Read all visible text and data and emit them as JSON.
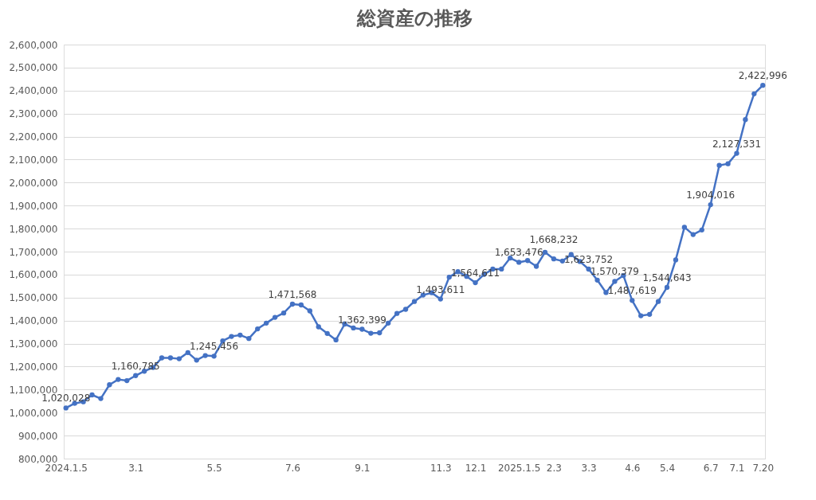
{
  "chart_data": {
    "type": "line",
    "title": "総資産の推移",
    "categories": [
      "2024.1.5",
      null,
      null,
      null,
      null,
      null,
      null,
      null,
      "3.1",
      null,
      null,
      null,
      null,
      null,
      null,
      null,
      null,
      "5.5",
      null,
      null,
      null,
      null,
      null,
      null,
      null,
      null,
      "7.6",
      null,
      null,
      null,
      null,
      null,
      null,
      null,
      "9.1",
      null,
      null,
      null,
      null,
      null,
      null,
      null,
      null,
      "11.3",
      null,
      null,
      null,
      "12.1",
      null,
      null,
      null,
      null,
      "2025.1.5",
      null,
      null,
      null,
      "2.3",
      null,
      null,
      null,
      "3.3",
      null,
      null,
      null,
      null,
      "4.6",
      null,
      null,
      null,
      "5.4",
      null,
      null,
      null,
      null,
      "6.7",
      null,
      null,
      "7.1",
      null,
      null,
      "7.20"
    ],
    "series": [
      {
        "color": "#4472c4",
        "values": [
          1020028,
          1040000,
          1047000,
          1077000,
          1061000,
          1121000,
          1144000,
          1139000,
          1160785,
          1180000,
          1196000,
          1238000,
          1238000,
          1234000,
          1261000,
          1228000,
          1248000,
          1245456,
          1312000,
          1331000,
          1337000,
          1322000,
          1364000,
          1389000,
          1414000,
          1433000,
          1471568,
          1468000,
          1442000,
          1373000,
          1344000,
          1316000,
          1385000,
          1368000,
          1362399,
          1345000,
          1347000,
          1389000,
          1431000,
          1449000,
          1483000,
          1511000,
          1521000,
          1493611,
          1589000,
          1613000,
          1592000,
          1564611,
          1601000,
          1624000,
          1624000,
          1672000,
          1653476,
          1661000,
          1636000,
          1697000,
          1668232,
          1659000,
          1687000,
          1657000,
          1623752,
          1576000,
          1522000,
          1570379,
          1596000,
          1487619,
          1421000,
          1427000,
          1483000,
          1544643,
          1664000,
          1806000,
          1774000,
          1794000,
          1904016,
          2075000,
          2082000,
          2127331,
          2274000,
          2386000,
          2422996
        ],
        "value_labels": [
          "1,020,028",
          null,
          null,
          null,
          null,
          null,
          null,
          null,
          "1,160,785",
          null,
          null,
          null,
          null,
          null,
          null,
          null,
          null,
          "1,245,456",
          null,
          null,
          null,
          null,
          null,
          null,
          null,
          null,
          "1,471,568",
          null,
          null,
          null,
          null,
          null,
          null,
          null,
          "1,362,399",
          null,
          null,
          null,
          null,
          null,
          null,
          null,
          null,
          "1,493,611",
          null,
          null,
          null,
          "1,564,611",
          null,
          null,
          null,
          null,
          "1,653,476",
          null,
          null,
          null,
          "1,668,232",
          null,
          null,
          null,
          "1,623,752",
          null,
          null,
          "1,570,379",
          null,
          "1,487,619",
          null,
          null,
          null,
          "1,544,643",
          null,
          null,
          null,
          null,
          "1,904,016",
          null,
          null,
          "2,127,331",
          null,
          null,
          "2,422,996"
        ]
      }
    ],
    "ylim": [
      800000,
      2600000
    ],
    "yticks": [
      {
        "value": 800000,
        "label": "800,000"
      },
      {
        "value": 900000,
        "label": "900,000"
      },
      {
        "value": 1000000,
        "label": "1,000,000"
      },
      {
        "value": 1100000,
        "label": "1,100,000"
      },
      {
        "value": 1200000,
        "label": "1,200,000"
      },
      {
        "value": 1300000,
        "label": "1,300,000"
      },
      {
        "value": 1400000,
        "label": "1,400,000"
      },
      {
        "value": 1500000,
        "label": "1,500,000"
      },
      {
        "value": 1600000,
        "label": "1,600,000"
      },
      {
        "value": 1700000,
        "label": "1,700,000"
      },
      {
        "value": 1800000,
        "label": "1,800,000"
      },
      {
        "value": 1900000,
        "label": "1,900,000"
      },
      {
        "value": 2000000,
        "label": "2,000,000"
      },
      {
        "value": 2100000,
        "label": "2,100,000"
      },
      {
        "value": 2200000,
        "label": "2,200,000"
      },
      {
        "value": 2300000,
        "label": "2,300,000"
      },
      {
        "value": 2400000,
        "label": "2,400,000"
      },
      {
        "value": 2500000,
        "label": "2,500,000"
      },
      {
        "value": 2600000,
        "label": "2,600,000"
      }
    ],
    "grid": "y",
    "marker": "circle",
    "line_style": "solid"
  }
}
